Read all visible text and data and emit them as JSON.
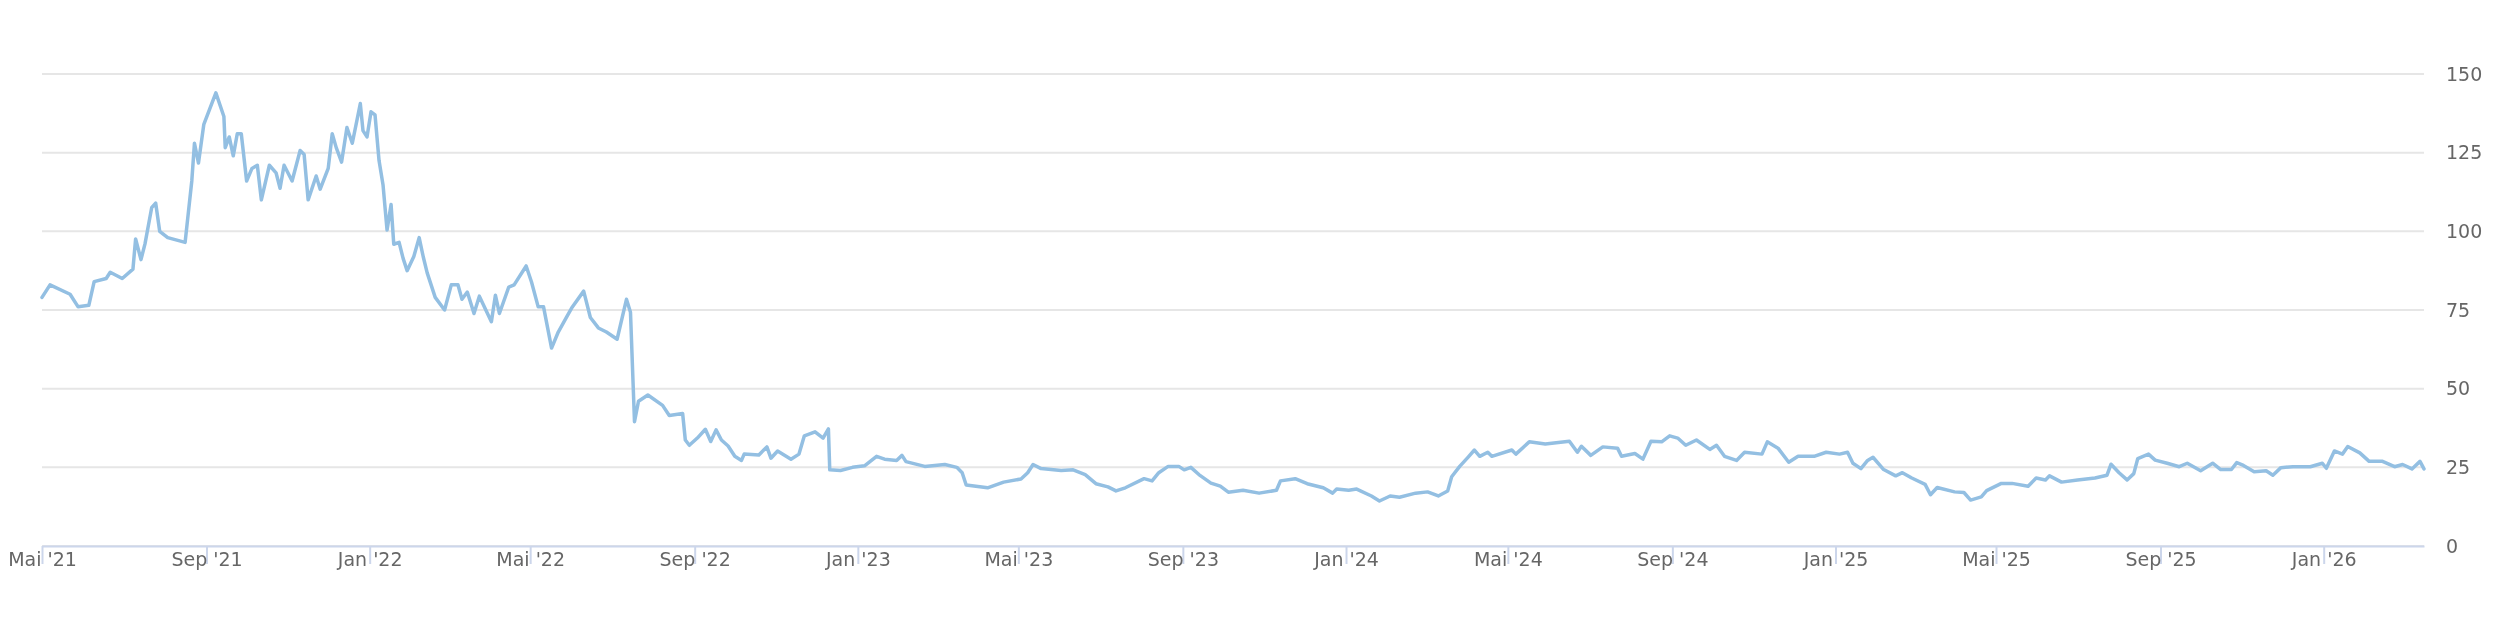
{
  "chart_data": {
    "type": "line",
    "grid": "y",
    "marker": "none",
    "line_style": "solid",
    "xlim": [
      "2021-05-01",
      "2026-03-17"
    ],
    "xticks": [
      {
        "value": "2021-05-01",
        "label": "Mai '21"
      },
      {
        "value": "2021-09-01",
        "label": "Sep '21"
      },
      {
        "value": "2022-01-01",
        "label": "Jan '22"
      },
      {
        "value": "2022-05-01",
        "label": "Mai '22"
      },
      {
        "value": "2022-09-01",
        "label": "Sep '22"
      },
      {
        "value": "2023-01-01",
        "label": "Jan '23"
      },
      {
        "value": "2023-05-01",
        "label": "Mai '23"
      },
      {
        "value": "2023-09-01",
        "label": "Sep '23"
      },
      {
        "value": "2024-01-01",
        "label": "Jan '24"
      },
      {
        "value": "2024-05-01",
        "label": "Mai '24"
      },
      {
        "value": "2024-09-01",
        "label": "Sep '24"
      },
      {
        "value": "2025-01-01",
        "label": "Jan '25"
      },
      {
        "value": "2025-05-01",
        "label": "Mai '25"
      },
      {
        "value": "2025-09-01",
        "label": "Sep '25"
      },
      {
        "value": "2026-01-01",
        "label": "Jan '26"
      }
    ],
    "ylim": [
      0,
      150
    ],
    "yticks": [
      0,
      25,
      50,
      75,
      100,
      125,
      150
    ],
    "x": [
      "2021-05-01",
      "2021-05-07",
      "2021-05-22",
      "2021-05-28",
      "2021-06-05",
      "2021-06-09",
      "2021-06-18",
      "2021-06-21",
      "2021-06-30",
      "2021-07-08",
      "2021-07-10",
      "2021-07-14",
      "2021-07-17",
      "2021-07-22",
      "2021-07-25",
      "2021-07-28",
      "2021-08-03",
      "2021-08-16",
      "2021-08-21",
      "2021-08-23",
      "2021-08-26",
      "2021-08-30",
      "2021-09-08",
      "2021-09-14",
      "2021-09-15",
      "2021-09-18",
      "2021-09-21",
      "2021-09-24",
      "2021-09-27",
      "2021-10-01",
      "2021-10-05",
      "2021-10-09",
      "2021-10-12",
      "2021-10-18",
      "2021-10-23",
      "2021-10-26",
      "2021-10-29",
      "2021-11-04",
      "2021-11-10",
      "2021-11-13",
      "2021-11-16",
      "2021-11-22",
      "2021-11-25",
      "2021-12-01",
      "2021-12-04",
      "2021-12-07",
      "2021-12-11",
      "2021-12-15",
      "2021-12-19",
      "2021-12-25",
      "2021-12-27",
      "2021-12-30",
      "2022-01-02",
      "2022-01-05",
      "2022-01-08",
      "2022-01-11",
      "2022-01-14",
      "2022-01-17",
      "2022-01-19",
      "2022-01-23",
      "2022-01-26",
      "2022-01-29",
      "2022-02-03",
      "2022-02-07",
      "2022-02-10",
      "2022-02-13",
      "2022-02-19",
      "2022-02-26",
      "2022-03-03",
      "2022-03-08",
      "2022-03-11",
      "2022-03-15",
      "2022-03-20",
      "2022-03-24",
      "2022-04-02",
      "2022-04-05",
      "2022-04-08",
      "2022-04-15",
      "2022-04-19",
      "2022-04-28",
      "2022-05-02",
      "2022-05-07",
      "2022-05-11",
      "2022-05-17",
      "2022-05-22",
      "2022-05-28",
      "2022-06-01",
      "2022-06-10",
      "2022-06-15",
      "2022-06-21",
      "2022-06-27",
      "2022-07-05",
      "2022-07-12",
      "2022-07-15",
      "2022-07-18",
      "2022-07-21",
      "2022-07-28",
      "2022-08-08",
      "2022-08-13",
      "2022-08-23",
      "2022-08-25",
      "2022-08-28",
      "2022-09-03",
      "2022-09-09",
      "2022-09-13",
      "2022-09-17",
      "2022-09-21",
      "2022-09-26",
      "2022-10-01",
      "2022-10-06",
      "2022-10-08",
      "2022-10-19",
      "2022-10-25",
      "2022-10-28",
      "2022-11-02",
      "2022-11-12",
      "2022-11-18",
      "2022-11-22",
      "2022-11-30",
      "2022-12-06",
      "2022-12-10",
      "2022-12-11",
      "2022-12-19",
      "2022-12-28",
      "2023-01-06",
      "2023-01-15",
      "2023-01-21",
      "2023-01-30",
      "2023-02-03",
      "2023-02-06",
      "2023-02-20",
      "2023-03-07",
      "2023-03-16",
      "2023-03-20",
      "2023-03-23",
      "2023-04-08",
      "2023-04-20",
      "2023-05-03",
      "2023-05-08",
      "2023-05-12",
      "2023-05-18",
      "2023-06-02",
      "2023-06-11",
      "2023-06-20",
      "2023-06-28",
      "2023-07-07",
      "2023-07-13",
      "2023-07-20",
      "2023-08-03",
      "2023-08-09",
      "2023-08-14",
      "2023-08-21",
      "2023-08-29",
      "2023-09-02",
      "2023-09-07",
      "2023-09-13",
      "2023-09-22",
      "2023-09-29",
      "2023-10-05",
      "2023-10-16",
      "2023-10-28",
      "2023-11-10",
      "2023-11-13",
      "2023-11-24",
      "2023-12-03",
      "2023-12-15",
      "2023-12-22",
      "2023-12-25",
      "2024-01-03",
      "2024-01-09",
      "2024-01-20",
      "2024-01-26",
      "2024-02-03",
      "2024-02-10",
      "2024-02-22",
      "2024-03-02",
      "2024-03-10",
      "2024-03-17",
      "2024-03-20",
      "2024-03-26",
      "2024-04-01",
      "2024-04-06",
      "2024-04-10",
      "2024-04-16",
      "2024-04-19",
      "2024-05-04",
      "2024-05-07",
      "2024-05-17",
      "2024-05-29",
      "2024-06-16",
      "2024-06-22",
      "2024-06-25",
      "2024-07-02",
      "2024-07-11",
      "2024-07-22",
      "2024-07-25",
      "2024-08-04",
      "2024-08-10",
      "2024-08-16",
      "2024-08-24",
      "2024-08-30",
      "2024-09-05",
      "2024-09-11",
      "2024-09-19",
      "2024-09-29",
      "2024-10-04",
      "2024-10-10",
      "2024-10-19",
      "2024-10-25",
      "2024-11-07",
      "2024-11-11",
      "2024-11-19",
      "2024-11-27",
      "2024-12-04",
      "2024-12-16",
      "2024-12-25",
      "2025-01-04",
      "2025-01-10",
      "2025-01-14",
      "2025-01-20",
      "2025-01-25",
      "2025-01-29",
      "2025-02-06",
      "2025-02-15",
      "2025-02-20",
      "2025-02-27",
      "2025-03-09",
      "2025-03-13",
      "2025-03-18",
      "2025-03-31",
      "2025-04-07",
      "2025-04-12",
      "2025-04-20",
      "2025-04-24",
      "2025-05-05",
      "2025-05-13",
      "2025-05-25",
      "2025-05-31",
      "2025-06-07",
      "2025-06-10",
      "2025-06-19",
      "2025-07-01",
      "2025-07-14",
      "2025-07-23",
      "2025-07-26",
      "2025-08-01",
      "2025-08-07",
      "2025-08-12",
      "2025-08-15",
      "2025-08-23",
      "2025-08-28",
      "2025-09-06",
      "2025-09-15",
      "2025-09-21",
      "2025-10-01",
      "2025-10-10",
      "2025-10-16",
      "2025-10-24",
      "2025-10-28",
      "2025-11-02",
      "2025-11-10",
      "2025-11-19",
      "2025-11-24",
      "2025-11-30",
      "2025-12-09",
      "2025-12-22",
      "2025-12-31",
      "2026-01-03",
      "2026-01-09",
      "2026-01-15",
      "2026-01-19",
      "2026-01-28",
      "2026-02-04",
      "2026-02-14",
      "2026-02-23",
      "2026-03-01",
      "2026-03-08",
      "2026-03-14",
      "2026-03-17"
    ],
    "series": [
      {
        "color": "#93bfe2",
        "values": [
          79,
          83,
          80,
          76,
          76.5,
          84,
          85,
          87,
          85,
          88,
          97.6,
          91,
          96,
          107.5,
          109,
          100,
          98,
          96.5,
          116,
          128,
          121.7,
          134,
          144,
          136.5,
          126.6,
          130,
          124,
          131,
          131,
          116,
          120,
          121,
          110,
          121,
          118.6,
          113.7,
          121,
          116,
          125.7,
          124.4,
          110,
          117.6,
          113.4,
          120,
          131,
          126.6,
          122,
          133,
          128,
          140.6,
          132,
          130,
          138,
          137,
          122.5,
          114.7,
          100.4,
          108.5,
          95.9,
          96.5,
          91.4,
          87.5,
          92,
          98,
          92,
          86.8,
          79,
          75,
          83,
          83,
          78.4,
          80.7,
          73.9,
          79.4,
          71.3,
          79.7,
          73.9,
          82.3,
          83,
          89,
          83.9,
          76,
          76,
          62.9,
          68,
          72.6,
          75.6,
          81,
          72.6,
          69.3,
          68,
          65.7,
          78.4,
          74.3,
          39.5,
          46,
          48,
          44.7,
          41.5,
          42.1,
          33.7,
          32,
          34.3,
          37.1,
          33.2,
          36.9,
          33.7,
          31.8,
          28.5,
          27.2,
          29.2,
          28.9,
          31.5,
          27.9,
          30.2,
          27.6,
          29.2,
          35,
          36.3,
          34.3,
          37.2,
          24.2,
          24,
          25,
          25.5,
          28.5,
          27.6,
          27.2,
          28.8,
          26.8,
          25.3,
          25.9,
          25,
          23.3,
          19.4,
          18.5,
          20.3,
          21.3,
          23.3,
          25.9,
          24.6,
          24,
          24.2,
          22.7,
          19.8,
          18.8,
          17.5,
          18.5,
          21.4,
          20.7,
          23.3,
          25.3,
          25.3,
          24.2,
          25,
          22.7,
          20,
          19,
          17.1,
          17.7,
          16.8,
          17.7,
          20.7,
          21.4,
          19.8,
          18.5,
          16.8,
          18.1,
          17.7,
          18.1,
          15.9,
          14.3,
          15.9,
          15.5,
          16.8,
          17.2,
          15.9,
          17.5,
          22,
          25.3,
          28.1,
          30.5,
          28.5,
          29.8,
          28.5,
          30.5,
          29.2,
          33.1,
          32.4,
          33.3,
          29.8,
          31.7,
          28.8,
          31.5,
          31.1,
          28.5,
          29.4,
          27.6,
          33.3,
          33.1,
          35,
          34.3,
          32,
          33.7,
          30.7,
          32,
          28.5,
          27.2,
          29.8,
          29.2,
          33.1,
          31.1,
          26.6,
          28.5,
          28.5,
          29.8,
          29.2,
          29.8,
          26.3,
          24.6,
          27.2,
          28.2,
          24.3,
          22.3,
          23.3,
          21.6,
          19.6,
          16.3,
          18.6,
          17.2,
          17,
          14.6,
          15.6,
          17.6,
          19.9,
          19.9,
          19,
          21.6,
          21,
          22.3,
          20.3,
          21,
          21.6,
          22.5,
          26,
          23.3,
          21,
          23,
          27.8,
          29.2,
          27.3,
          26.3,
          25.2,
          26.3,
          23.9,
          26.3,
          24.3,
          24.3,
          26.5,
          25.6,
          23.6,
          23.9,
          22.5,
          24.9,
          25.2,
          25.2,
          26.3,
          24.7,
          30.2,
          29.2,
          31.6,
          29.6,
          26.9,
          26.9,
          25.2,
          25.9,
          24.5,
          26.9,
          24.5
        ]
      }
    ]
  }
}
